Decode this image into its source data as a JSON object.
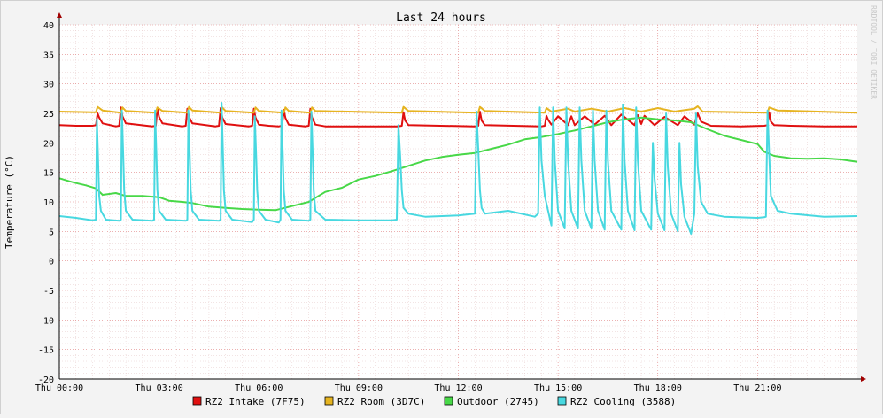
{
  "chart_data": {
    "type": "line",
    "title": "Last 24 hours",
    "ylabel": "Temperature (°C)",
    "xlabel": "",
    "watermark": "RRDTOOL / TOBI OETIKER",
    "ylim": [
      -20,
      40
    ],
    "y_ticks": [
      -20,
      -15,
      -10,
      -5,
      0,
      5,
      10,
      15,
      20,
      25,
      30,
      35,
      40
    ],
    "xlim_hours": [
      0,
      24
    ],
    "x_ticks": [
      {
        "hour": 0,
        "label": "Thu 00:00"
      },
      {
        "hour": 3,
        "label": "Thu 03:00"
      },
      {
        "hour": 6,
        "label": "Thu 06:00"
      },
      {
        "hour": 9,
        "label": "Thu 09:00"
      },
      {
        "hour": 12,
        "label": "Thu 12:00"
      },
      {
        "hour": 15,
        "label": "Thu 15:00"
      },
      {
        "hour": 18,
        "label": "Thu 18:00"
      },
      {
        "hour": 21,
        "label": "Thu 21:00"
      }
    ],
    "grid": true,
    "legend_position": "bottom",
    "series": [
      {
        "name": "RZ2 Intake (7F75)",
        "color": "#e01010",
        "x": [
          0,
          0.5,
          1.0,
          1.1,
          1.15,
          1.2,
          1.3,
          1.7,
          1.8,
          1.85,
          1.9,
          2.0,
          2.8,
          2.9,
          2.95,
          3.0,
          3.1,
          3.7,
          3.8,
          3.85,
          3.9,
          4.0,
          4.7,
          4.8,
          4.85,
          4.9,
          5.0,
          5.7,
          5.8,
          5.85,
          5.9,
          6.0,
          6.3,
          6.6,
          6.7,
          6.75,
          6.8,
          6.9,
          7.4,
          7.5,
          7.55,
          7.6,
          7.7,
          8.0,
          10.2,
          10.3,
          10.35,
          10.4,
          10.5,
          12.5,
          12.6,
          12.65,
          12.7,
          12.8,
          14.5,
          14.6,
          14.65,
          14.7,
          14.8,
          15.0,
          15.3,
          15.4,
          15.5,
          15.8,
          16.1,
          16.4,
          16.6,
          16.9,
          17.3,
          17.4,
          17.5,
          17.6,
          17.9,
          18.2,
          18.6,
          18.8,
          19.1,
          19.2,
          19.3,
          19.6,
          20.5,
          21.2,
          21.3,
          21.35,
          21.4,
          21.5,
          22,
          23,
          24
        ],
        "y": [
          23.0,
          22.9,
          22.9,
          23.0,
          25.0,
          24.3,
          23.3,
          22.8,
          22.9,
          26.0,
          24.5,
          23.3,
          22.8,
          22.9,
          25.9,
          24.4,
          23.3,
          22.8,
          22.9,
          25.8,
          24.4,
          23.3,
          22.8,
          22.9,
          25.9,
          24.3,
          23.2,
          22.8,
          22.9,
          25.8,
          24.3,
          23.1,
          22.9,
          22.8,
          22.9,
          25.6,
          24.2,
          23.1,
          22.8,
          22.9,
          25.8,
          24.3,
          23.1,
          22.8,
          22.8,
          22.9,
          25.2,
          23.8,
          23.0,
          22.8,
          22.9,
          25.3,
          23.8,
          23.0,
          22.8,
          22.9,
          24.6,
          23.9,
          23.1,
          24.5,
          23.0,
          24.5,
          23.0,
          24.5,
          23.1,
          24.6,
          23.0,
          24.8,
          23.0,
          24.7,
          23.2,
          24.6,
          23.0,
          24.4,
          23.0,
          24.5,
          23.1,
          25.0,
          23.6,
          22.9,
          22.8,
          22.9,
          23.0,
          25.2,
          23.6,
          23.0,
          22.9,
          22.8,
          22.8
        ]
      },
      {
        "name": "RZ2 Room (3D7C)",
        "color": "#e6b420",
        "x": [
          0,
          1.0,
          1.1,
          1.15,
          1.3,
          1.85,
          1.9,
          2.0,
          2.9,
          2.95,
          3.1,
          3.85,
          3.9,
          4.0,
          4.85,
          4.9,
          5.0,
          5.85,
          5.9,
          6.0,
          6.75,
          6.8,
          6.9,
          7.55,
          7.6,
          7.7,
          10.3,
          10.35,
          10.5,
          12.6,
          12.65,
          12.8,
          14.6,
          14.65,
          14.8,
          15.3,
          15.5,
          16.0,
          16.5,
          17.0,
          17.5,
          18.0,
          18.5,
          19.1,
          19.2,
          19.35,
          21.3,
          21.35,
          21.6,
          24
        ],
        "y": [
          25.3,
          25.2,
          25.2,
          26.1,
          25.5,
          25.1,
          26.0,
          25.4,
          25.1,
          26.0,
          25.4,
          25.1,
          26.1,
          25.5,
          25.1,
          26.0,
          25.4,
          25.1,
          26.0,
          25.4,
          25.1,
          26.0,
          25.4,
          25.1,
          26.0,
          25.4,
          25.1,
          26.1,
          25.4,
          25.1,
          26.1,
          25.4,
          25.1,
          25.9,
          25.3,
          25.8,
          25.3,
          25.8,
          25.3,
          25.9,
          25.3,
          25.9,
          25.3,
          25.8,
          26.2,
          25.3,
          25.1,
          26.0,
          25.5,
          25.1
        ]
      },
      {
        "name": "Outdoor (2745)",
        "color": "#48d848",
        "x": [
          0,
          0.3,
          0.5,
          0.8,
          1.1,
          1.3,
          1.7,
          2.0,
          2.5,
          3.0,
          3.3,
          3.7,
          4.0,
          4.5,
          5.0,
          5.5,
          6.0,
          6.5,
          7.0,
          7.5,
          8.0,
          8.5,
          9.0,
          9.5,
          10.0,
          10.5,
          11.0,
          11.5,
          12.0,
          12.5,
          13.0,
          13.5,
          14.0,
          14.5,
          15.0,
          15.5,
          16.0,
          16.5,
          17.0,
          17.5,
          18.0,
          18.5,
          19.0,
          19.5,
          20.0,
          20.5,
          21.0,
          21.2,
          21.5,
          22.0,
          22.5,
          23.0,
          23.5,
          24
        ],
        "y": [
          14.0,
          13.5,
          13.2,
          12.8,
          12.3,
          11.2,
          11.5,
          11.0,
          11.0,
          10.8,
          10.2,
          10.0,
          9.8,
          9.2,
          9.0,
          8.8,
          8.7,
          8.6,
          9.3,
          10.0,
          11.7,
          12.4,
          13.8,
          14.4,
          15.2,
          16.1,
          17.0,
          17.6,
          18.0,
          18.3,
          19.0,
          19.7,
          20.6,
          21.0,
          21.5,
          22.1,
          22.8,
          23.5,
          24.0,
          24.3,
          24.0,
          23.8,
          23.5,
          22.3,
          21.2,
          20.5,
          19.8,
          18.5,
          17.8,
          17.4,
          17.3,
          17.4,
          17.2,
          16.8
        ]
      },
      {
        "name": "RZ2 Cooling (3588)",
        "color": "#48d8e0",
        "x": [
          0,
          0.5,
          1.0,
          1.1,
          1.13,
          1.17,
          1.2,
          1.25,
          1.4,
          1.8,
          1.85,
          1.88,
          1.92,
          1.95,
          2.0,
          2.2,
          2.8,
          2.85,
          2.88,
          2.92,
          2.95,
          3.0,
          3.2,
          3.8,
          3.85,
          3.88,
          3.92,
          3.95,
          4.0,
          4.2,
          4.8,
          4.85,
          4.88,
          4.92,
          4.95,
          5.0,
          5.2,
          5.8,
          5.85,
          5.88,
          5.92,
          5.95,
          6.0,
          6.2,
          6.6,
          6.65,
          6.68,
          6.72,
          6.75,
          6.8,
          7.0,
          7.5,
          7.55,
          7.58,
          7.62,
          7.65,
          7.7,
          8.0,
          9.0,
          10.0,
          10.15,
          10.2,
          10.25,
          10.3,
          10.35,
          10.5,
          11.0,
          12.0,
          12.5,
          12.55,
          12.6,
          12.65,
          12.7,
          12.8,
          13.5,
          14.3,
          14.4,
          14.45,
          14.5,
          14.6,
          14.8,
          14.85,
          14.9,
          15.0,
          15.2,
          15.25,
          15.3,
          15.4,
          15.6,
          15.65,
          15.7,
          15.8,
          16.0,
          16.05,
          16.1,
          16.2,
          16.4,
          16.45,
          16.5,
          16.6,
          16.9,
          16.95,
          17.0,
          17.1,
          17.3,
          17.35,
          17.4,
          17.5,
          17.8,
          17.85,
          17.9,
          18.0,
          18.2,
          18.25,
          18.3,
          18.4,
          18.6,
          18.65,
          18.7,
          18.8,
          19.0,
          19.1,
          19.15,
          19.2,
          19.3,
          19.5,
          20.0,
          21.0,
          21.2,
          21.25,
          21.3,
          21.35,
          21.4,
          21.6,
          22.0,
          23.0,
          24
        ],
        "y": [
          7.6,
          7.3,
          6.9,
          7.0,
          24.0,
          16.5,
          11.0,
          8.5,
          7.0,
          6.8,
          7.0,
          25.5,
          18.0,
          12.0,
          8.5,
          7.0,
          6.8,
          7.0,
          25.5,
          18.0,
          12.0,
          8.5,
          7.0,
          6.8,
          7.0,
          25.5,
          18.0,
          12.0,
          8.5,
          7.0,
          6.8,
          7.0,
          26.8,
          18.5,
          12.0,
          8.5,
          7.0,
          6.6,
          7.0,
          24.5,
          18.0,
          12.0,
          8.5,
          7.0,
          6.5,
          7.0,
          25.5,
          18.0,
          12.0,
          8.5,
          7.0,
          6.8,
          7.0,
          25.3,
          18.0,
          12.0,
          8.5,
          7.0,
          6.9,
          6.9,
          7.0,
          23.0,
          18.0,
          12.0,
          9.0,
          8.0,
          7.5,
          7.7,
          8.0,
          25.3,
          19.0,
          12.0,
          9.0,
          8.0,
          8.5,
          7.5,
          8.0,
          26.0,
          17.0,
          11.0,
          6.0,
          26.0,
          17.0,
          8.5,
          5.5,
          26.0,
          17.0,
          8.5,
          5.5,
          26.0,
          17.0,
          8.5,
          5.5,
          25.5,
          17.0,
          8.5,
          5.3,
          25.5,
          17.0,
          8.5,
          5.3,
          26.5,
          17.0,
          8.5,
          5.2,
          26.0,
          17.0,
          8.5,
          5.3,
          20.0,
          14.0,
          8.0,
          5.2,
          25.0,
          16.0,
          8.0,
          5.0,
          20.0,
          13.0,
          7.5,
          4.6,
          8.0,
          25.0,
          16.0,
          10.0,
          8.0,
          7.5,
          7.3,
          7.4,
          7.5,
          25.5,
          18.0,
          11.0,
          8.5,
          8.0,
          7.5,
          7.6
        ]
      }
    ]
  }
}
